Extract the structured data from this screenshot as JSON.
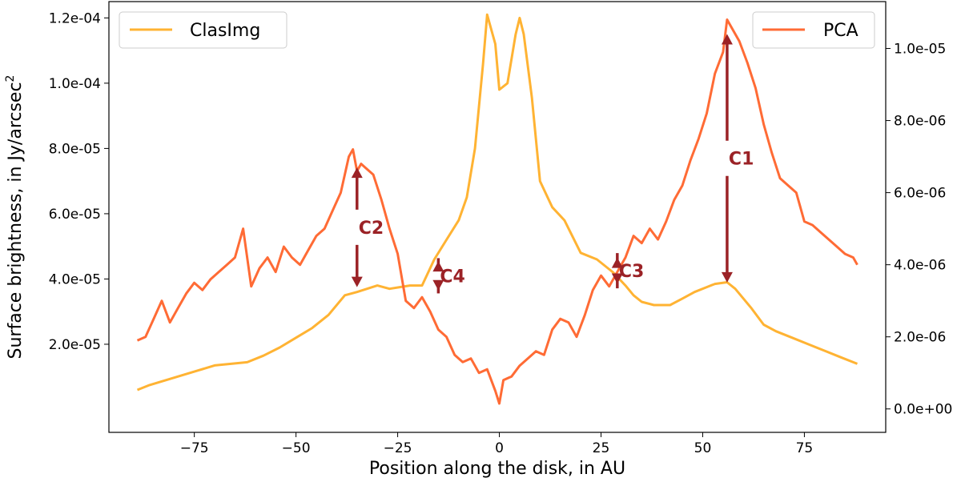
{
  "chart_data": {
    "type": "line",
    "title": "",
    "xlabel": "Position along the disk, in AU",
    "ylabel": "Surface brightness, in Jy/arcsec",
    "ylabel_sup": "2",
    "xlim": [
      -96,
      95
    ],
    "ylim_left": [
      -7e-06,
      0.000125
    ],
    "ylim_right": [
      -6.5e-07,
      1.13e-05
    ],
    "x_ticks": [
      -75,
      -50,
      -25,
      0,
      25,
      50,
      75
    ],
    "x_tick_labels": [
      "−75",
      "−50",
      "−25",
      "0",
      "25",
      "50",
      "75"
    ],
    "y_left_ticks": [
      2e-05,
      4e-05,
      6e-05,
      8e-05,
      0.0001,
      0.00012
    ],
    "y_left_tick_labels": [
      "2.0e-05",
      "4.0e-05",
      "6.0e-05",
      "8.0e-05",
      "1.0e-04",
      "1.2e-04"
    ],
    "y_right_ticks": [
      0,
      2e-06,
      4e-06,
      6e-06,
      8e-06,
      1e-05
    ],
    "y_right_tick_labels": [
      "0.0e+00",
      "2.0e-06",
      "4.0e-06",
      "6.0e-06",
      "8.0e-06",
      "1.0e-05"
    ],
    "grid": false,
    "series": [
      {
        "name": "ClasImg",
        "axis": "left",
        "color": "#ffb333",
        "legend_position": "top-left",
        "x": [
          -89,
          -86,
          -82,
          -78,
          -74,
          -70,
          -66,
          -62,
          -58,
          -54,
          -50,
          -46,
          -42,
          -38,
          -35,
          -30,
          -27,
          -22,
          -19,
          -16,
          -13,
          -10,
          -8,
          -6,
          -4,
          -3,
          -1,
          0,
          2,
          4,
          5,
          6,
          8,
          10,
          13,
          16,
          20,
          24,
          28,
          31,
          33,
          35,
          38,
          42,
          45,
          48,
          51,
          53,
          56,
          58,
          60,
          62,
          65,
          68,
          72,
          76,
          80,
          84,
          88
        ],
        "values": [
          6e-06,
          7.5e-06,
          9e-06,
          1.05e-05,
          1.2e-05,
          1.35e-05,
          1.4e-05,
          1.45e-05,
          1.65e-05,
          1.9e-05,
          2.2e-05,
          2.5e-05,
          2.9e-05,
          3.5e-05,
          3.6e-05,
          3.8e-05,
          3.7e-05,
          3.8e-05,
          3.8e-05,
          4.6e-05,
          5.2e-05,
          5.8e-05,
          6.5e-05,
          8e-05,
          0.000106,
          0.000121,
          0.000112,
          9.8e-05,
          0.0001,
          0.000115,
          0.00012,
          0.000115,
          9.55e-05,
          7e-05,
          6.2e-05,
          5.8e-05,
          4.8e-05,
          4.6e-05,
          4.2e-05,
          3.8e-05,
          3.5e-05,
          3.3e-05,
          3.2e-05,
          3.2e-05,
          3.4e-05,
          3.6e-05,
          3.75e-05,
          3.85e-05,
          3.9e-05,
          3.7e-05,
          3.4e-05,
          3.1e-05,
          2.6e-05,
          2.4e-05,
          2.2e-05,
          2e-05,
          1.8e-05,
          1.6e-05,
          1.4e-05
        ]
      },
      {
        "name": "PCA",
        "axis": "right",
        "color": "#ff6b35",
        "legend_position": "top-right",
        "x": [
          -89,
          -87,
          -85,
          -83,
          -81,
          -79,
          -77,
          -75,
          -73,
          -71,
          -69,
          -67,
          -65,
          -63,
          -61,
          -59,
          -57,
          -55,
          -53,
          -51,
          -49,
          -47,
          -45,
          -43,
          -41,
          -39,
          -37,
          -36,
          -35,
          -34,
          -33,
          -31,
          -29,
          -27,
          -25,
          -23,
          -21,
          -19,
          -17,
          -15,
          -13,
          -11,
          -9,
          -7,
          -5,
          -3,
          -1,
          0,
          1,
          3,
          5,
          7,
          9,
          11,
          13,
          15,
          17,
          19,
          21,
          23,
          25,
          27,
          29,
          31,
          33,
          35,
          37,
          39,
          41,
          43,
          45,
          47,
          49,
          51,
          53,
          55,
          56,
          57,
          59,
          61,
          63,
          65,
          67,
          69,
          71,
          73,
          75,
          77,
          79,
          81,
          83,
          85,
          87,
          88
        ],
        "values": [
          1.9e-06,
          2e-06,
          2.5e-06,
          3e-06,
          2.4e-06,
          2.8e-06,
          3.2e-06,
          3.5e-06,
          3.3e-06,
          3.6e-06,
          3.8e-06,
          4e-06,
          4.2e-06,
          5e-06,
          3.4e-06,
          3.9e-06,
          4.2e-06,
          3.8e-06,
          4.5e-06,
          4.2e-06,
          4e-06,
          4.4e-06,
          4.8e-06,
          5e-06,
          5.5e-06,
          6e-06,
          7e-06,
          7.2e-06,
          6.6e-06,
          6.8e-06,
          6.7e-06,
          6.5e-06,
          5.8e-06,
          5e-06,
          4.3e-06,
          3e-06,
          2.8e-06,
          3.1e-06,
          2.7e-06,
          2.2e-06,
          2e-06,
          1.5e-06,
          1.3e-06,
          1.4e-06,
          1e-06,
          1.1e-06,
          5e-07,
          1.5e-07,
          8e-07,
          9e-07,
          1.2e-06,
          1.4e-06,
          1.6e-06,
          1.5e-06,
          2.2e-06,
          2.5e-06,
          2.4e-06,
          2e-06,
          2.6e-06,
          3.3e-06,
          3.7e-06,
          3.4e-06,
          3.8e-06,
          4.2e-06,
          4.8e-06,
          4.6e-06,
          5e-06,
          4.7e-06,
          5.2e-06,
          5.8e-06,
          6.2e-06,
          6.9e-06,
          7.5e-06,
          8.2e-06,
          9.3e-06,
          9.9e-06,
          1.08e-05,
          1.06e-05,
          1.02e-05,
          9.6e-06,
          8.9e-06,
          7.9e-06,
          7.1e-06,
          6.4e-06,
          6.2e-06,
          6e-06,
          5.2e-06,
          5.1e-06,
          4.9e-06,
          4.7e-06,
          4.5e-06,
          4.3e-06,
          4.2e-06,
          4e-06
        ]
      }
    ],
    "annotations": [
      {
        "label": "C1",
        "x": 56,
        "from_right": 1.04e-05,
        "to_left": 3.89e-05,
        "color": "#9b2226"
      },
      {
        "label": "C2",
        "x": -35,
        "from_right": 6.7e-06,
        "to_left": 3.75e-05,
        "color": "#9b2226"
      },
      {
        "label": "C3",
        "x": 29,
        "from_right": 4.2e-06,
        "to_left": 3.85e-05,
        "color": "#9b2226"
      },
      {
        "label": "C4",
        "x": -15,
        "from_right": 4.1e-06,
        "to_left": 3.65e-05,
        "color": "#9b2226"
      }
    ]
  }
}
